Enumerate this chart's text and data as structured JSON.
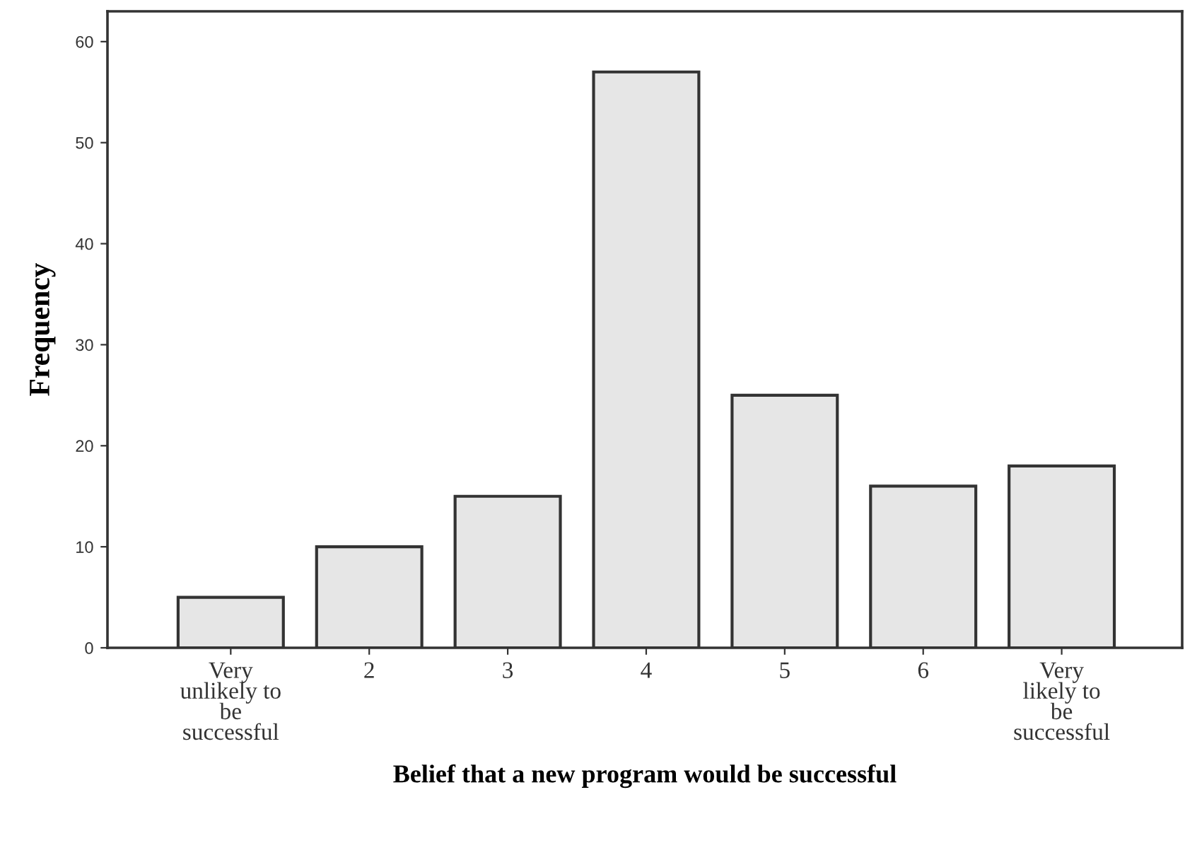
{
  "chart_data": {
    "type": "bar",
    "xlabel": "Belief that a new program would be successful",
    "ylabel": "Frequency",
    "categories": [
      "Very\nunlikely to\nbe\nsuccessful",
      "2",
      "3",
      "4",
      "5",
      "6",
      "Very\nlikely to\nbe\nsuccessful"
    ],
    "values": [
      5,
      10,
      15,
      57,
      25,
      16,
      18
    ],
    "color": "#e6e6e6",
    "ylim": [
      0,
      63
    ],
    "yticks": [
      0,
      10,
      20,
      30,
      40,
      50,
      60
    ],
    "grid": false
  }
}
